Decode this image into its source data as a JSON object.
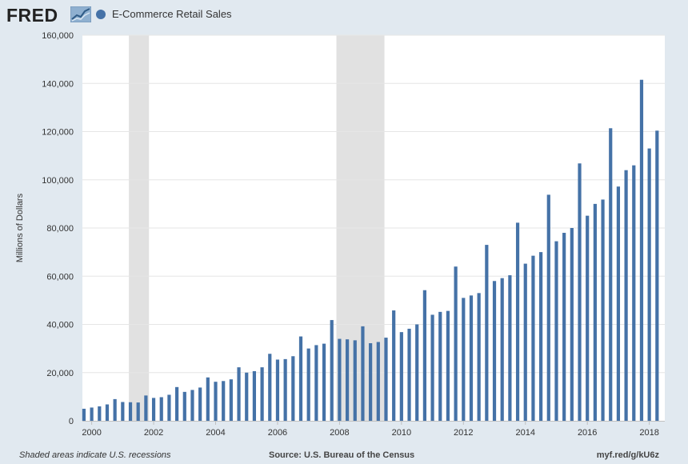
{
  "header": {
    "logo_text": "FRED",
    "series_label": "E-Commerce Retail Sales",
    "series_color": "#4572a7"
  },
  "footer": {
    "note": "Shaded areas indicate U.S. recessions",
    "source": "Source: U.S. Bureau of the Census",
    "link": "myf.red/g/kU6z"
  },
  "chart_data": {
    "type": "bar",
    "title": "",
    "xlabel": "",
    "ylabel": "Millions of Dollars",
    "ylim": [
      0,
      160000
    ],
    "yticks": [
      0,
      20000,
      40000,
      60000,
      80000,
      100000,
      120000,
      140000,
      160000
    ],
    "ytick_labels": [
      "0",
      "20,000",
      "40,000",
      "60,000",
      "80,000",
      "100,000",
      "120,000",
      "140,000",
      "160,000"
    ],
    "xlim": [
      1999.7,
      2018.5
    ],
    "xticks": [
      2000,
      2002,
      2004,
      2006,
      2008,
      2010,
      2012,
      2014,
      2016,
      2018
    ],
    "xtick_labels": [
      "2000",
      "2002",
      "2004",
      "2006",
      "2008",
      "2010",
      "2012",
      "2014",
      "2016",
      "2018"
    ],
    "grid": true,
    "legend_position": "top-left",
    "recessions": [
      [
        2001.2,
        2001.85
      ],
      [
        2007.9,
        2009.45
      ]
    ],
    "series": [
      {
        "name": "E-Commerce Retail Sales",
        "color": "#4572a7",
        "x": [
          1999.75,
          2000.0,
          2000.25,
          2000.5,
          2000.75,
          2001.0,
          2001.25,
          2001.5,
          2001.75,
          2002.0,
          2002.25,
          2002.5,
          2002.75,
          2003.0,
          2003.25,
          2003.5,
          2003.75,
          2004.0,
          2004.25,
          2004.5,
          2004.75,
          2005.0,
          2005.25,
          2005.5,
          2005.75,
          2006.0,
          2006.25,
          2006.5,
          2006.75,
          2007.0,
          2007.25,
          2007.5,
          2007.75,
          2008.0,
          2008.25,
          2008.5,
          2008.75,
          2009.0,
          2009.25,
          2009.5,
          2009.75,
          2010.0,
          2010.25,
          2010.5,
          2010.75,
          2011.0,
          2011.25,
          2011.5,
          2011.75,
          2012.0,
          2012.25,
          2012.5,
          2012.75,
          2013.0,
          2013.25,
          2013.5,
          2013.75,
          2014.0,
          2014.25,
          2014.5,
          2014.75,
          2015.0,
          2015.25,
          2015.5,
          2015.75,
          2016.0,
          2016.25,
          2016.5,
          2016.75,
          2017.0,
          2017.25,
          2017.5,
          2017.75,
          2018.0,
          2018.25
        ],
        "values": [
          5000,
          5500,
          6000,
          6800,
          9000,
          7800,
          7700,
          7600,
          10500,
          9500,
          9800,
          10800,
          14000,
          12000,
          12800,
          13800,
          18000,
          16200,
          16500,
          17200,
          22200,
          20000,
          20600,
          22200,
          27800,
          25400,
          25600,
          26800,
          35000,
          30000,
          31400,
          32000,
          41800,
          34000,
          33800,
          33400,
          39200,
          32200,
          32700,
          34500,
          45800,
          36800,
          38200,
          40000,
          54200,
          44000,
          45200,
          45600,
          64000,
          51000,
          52000,
          53000,
          73000,
          58000,
          59200,
          60400,
          82200,
          65200,
          68500,
          70000,
          93800,
          74500,
          78000,
          80000,
          106800,
          85100,
          90000,
          91800,
          121400,
          97200,
          104000,
          106000,
          141500,
          113000,
          120400
        ]
      }
    ]
  }
}
